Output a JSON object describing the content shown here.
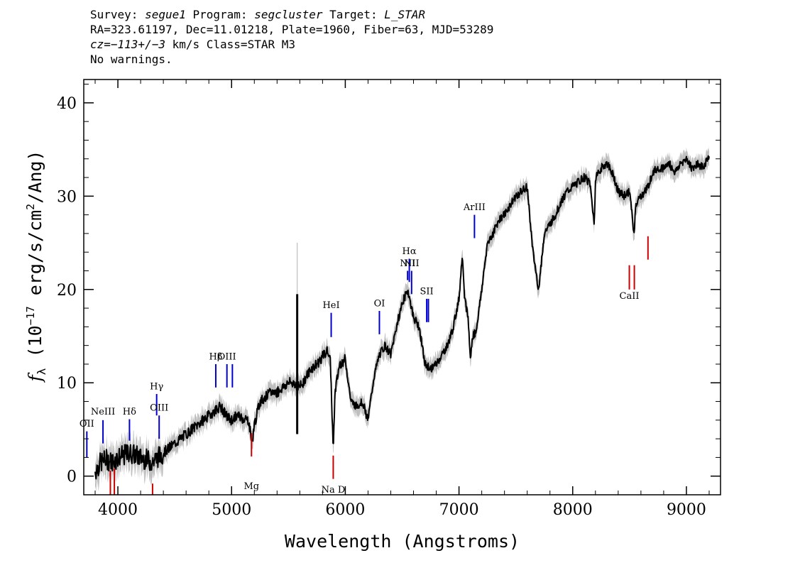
{
  "header": {
    "line1": {
      "survey_label": "Survey: ",
      "survey": "segue1",
      "program_label": " Program: ",
      "program": "segcluster",
      "target_label": " Target: ",
      "target": "L_STAR"
    },
    "line2": "RA=323.61197, Dec=11.01218, Plate=1960, Fiber=63, MJD=53289",
    "line3": {
      "cz": "cz=−113+/−3",
      "rest": " km/s Class=STAR M3"
    },
    "line4": "No warnings."
  },
  "chart_data": {
    "type": "line",
    "xlabel": "Wavelength (Angstroms)",
    "ylabel": "f_λ (10^-17 erg/s/cm^2/Ang)",
    "xlim": [
      3700,
      9300
    ],
    "ylim": [
      -2,
      42.5
    ],
    "xticks": [
      4000,
      5000,
      6000,
      7000,
      8000,
      9000
    ],
    "yticks": [
      0,
      10,
      20,
      30,
      40
    ],
    "grid": false,
    "series": [
      {
        "color_main": "#000000",
        "color_error": "#bfbfbf",
        "x": [
          3800,
          3850,
          3900,
          3950,
          4000,
          4050,
          4100,
          4150,
          4200,
          4250,
          4300,
          4350,
          4400,
          4450,
          4500,
          4550,
          4600,
          4650,
          4700,
          4750,
          4800,
          4850,
          4900,
          4950,
          5000,
          5050,
          5100,
          5150,
          5180,
          5200,
          5250,
          5300,
          5350,
          5400,
          5450,
          5500,
          5550,
          5600,
          5650,
          5700,
          5750,
          5800,
          5850,
          5870,
          5893,
          5910,
          5950,
          6000,
          6050,
          6100,
          6150,
          6200,
          6250,
          6300,
          6350,
          6400,
          6450,
          6500,
          6550,
          6565,
          6600,
          6650,
          6700,
          6750,
          6800,
          6850,
          6900,
          6950,
          7000,
          7030,
          7050,
          7080,
          7100,
          7120,
          7150,
          7200,
          7250,
          7300,
          7350,
          7400,
          7450,
          7500,
          7550,
          7600,
          7650,
          7700,
          7750,
          7800,
          7850,
          7900,
          7950,
          8000,
          8050,
          8100,
          8150,
          8190,
          8200,
          8250,
          8300,
          8350,
          8400,
          8450,
          8500,
          8542,
          8550,
          8600,
          8662,
          8700,
          8750,
          8800,
          8850,
          8900,
          8950,
          9000,
          9050,
          9100,
          9150,
          9200
        ],
        "y": [
          0.5,
          1.5,
          1.8,
          1.5,
          2.0,
          2.2,
          2.5,
          2.3,
          2.0,
          1.8,
          1.5,
          2.0,
          2.5,
          3.0,
          3.5,
          4.0,
          4.5,
          5.0,
          5.5,
          6.0,
          6.5,
          7.0,
          7.5,
          6.5,
          6.0,
          6.5,
          6.2,
          6.0,
          3.5,
          5.5,
          8.0,
          8.5,
          9.0,
          9.0,
          9.5,
          10.0,
          10.0,
          9.5,
          10.5,
          11.5,
          12.0,
          12.8,
          13.5,
          12.0,
          3.0,
          9.0,
          12.0,
          12.5,
          8.0,
          7.5,
          8.0,
          6.0,
          10.5,
          13.0,
          14.0,
          13.0,
          16.0,
          18.5,
          20.0,
          19.0,
          17.0,
          16.0,
          12.0,
          11.5,
          12.0,
          13.0,
          14.0,
          16.0,
          19.0,
          24.0,
          19.0,
          17.0,
          12.5,
          15.0,
          15.5,
          20.0,
          25.0,
          26.0,
          27.5,
          28.0,
          29.0,
          30.0,
          30.5,
          31.0,
          24.0,
          20.0,
          26.0,
          27.0,
          28.0,
          29.5,
          30.5,
          31.0,
          31.5,
          32.0,
          31.5,
          27.0,
          32.0,
          33.0,
          33.5,
          32.5,
          30.5,
          30.0,
          30.5,
          25.5,
          29.0,
          30.0,
          31.0,
          32.5,
          33.0,
          33.0,
          33.5,
          32.5,
          33.5,
          34.0,
          33.0,
          33.5,
          33.0,
          34.5
        ]
      }
    ],
    "spikes": [
      {
        "x": 5577,
        "ymin": 4.5,
        "ymax": 19.5,
        "err_ymin": 5.0,
        "err_ymax": 25.0
      }
    ],
    "emission_lines": [
      {
        "label": "OII",
        "x": 3727,
        "y1": 2.0,
        "y2": 4.8,
        "label_y": 5.3,
        "color": "#0000cc"
      },
      {
        "label": "NeIII",
        "x": 3869,
        "y1": 3.5,
        "y2": 6.0,
        "label_y": 6.6,
        "color": "#0000cc"
      },
      {
        "label": "Hδ",
        "x": 4102,
        "y1": 3.8,
        "y2": 6.1,
        "label_y": 6.6,
        "color": "#0000cc"
      },
      {
        "label": "Hγ",
        "x": 4341,
        "y1": 6.5,
        "y2": 8.8,
        "label_y": 9.3,
        "color": "#0000cc"
      },
      {
        "label": "OIII",
        "x": 4363,
        "y1": 4.0,
        "y2": 6.5,
        "label_y": 7.0,
        "color": "#0000cc"
      },
      {
        "label": "Hβ",
        "x": 4861,
        "y1": 9.5,
        "y2": 12.0,
        "label_y": 12.5,
        "color": "#0000cc"
      },
      {
        "label": "OIII",
        "x": 4959,
        "y1": 9.5,
        "y2": 12.0,
        "label_y": 12.5,
        "color": "#0000cc"
      },
      {
        "label": "",
        "x": 5007,
        "y1": 9.5,
        "y2": 12.0,
        "label_y": 12.5,
        "color": "#0000cc"
      },
      {
        "label": "HeI",
        "x": 5876,
        "y1": 14.9,
        "y2": 17.5,
        "label_y": 18.0,
        "color": "#0000cc"
      },
      {
        "label": "OI",
        "x": 6300,
        "y1": 15.2,
        "y2": 17.7,
        "label_y": 18.2,
        "color": "#0000cc"
      },
      {
        "label": "NII",
        "x": 6548,
        "y1": 21.0,
        "y2": 22.0,
        "label_y": 22.5,
        "color": "#0000cc"
      },
      {
        "label": "Hα",
        "x": 6563,
        "y1": 20.8,
        "y2": 23.3,
        "label_y": 23.8,
        "color": "#0000cc"
      },
      {
        "label": "NII",
        "x": 6583,
        "y1": 19.5,
        "y2": 22.0,
        "label_y": 22.5,
        "color": "#0000cc"
      },
      {
        "label": "SII",
        "x": 6716,
        "y1": 16.5,
        "y2": 19.0,
        "label_y": 19.5,
        "color": "#0000cc"
      },
      {
        "label": "",
        "x": 6731,
        "y1": 16.5,
        "y2": 19.0,
        "label_y": 19.5,
        "color": "#0000cc"
      },
      {
        "label": "ArIII",
        "x": 7136,
        "y1": 25.5,
        "y2": 28.0,
        "label_y": 28.5,
        "color": "#0000cc"
      }
    ],
    "absorption_lines": [
      {
        "label": "",
        "x": 3934,
        "y1": -2.0,
        "y2": 0.6,
        "label_y": -1.0,
        "color": "#cc0000"
      },
      {
        "label": "",
        "x": 3969,
        "y1": -2.0,
        "y2": 0.8,
        "label_y": -1.0,
        "color": "#cc0000"
      },
      {
        "label": "",
        "x": 4305,
        "y1": -2.0,
        "y2": -0.8,
        "label_y": -1.0,
        "color": "#cc0000"
      },
      {
        "label": "Mg",
        "x": 5175,
        "y1": 2.1,
        "y2": 4.6,
        "label_y": -1.4,
        "color": "#cc0000"
      },
      {
        "label": "Na D",
        "x": 5894,
        "y1": -0.3,
        "y2": 2.2,
        "label_y": -2.0,
        "color": "#cc0000"
      },
      {
        "label": "CaII",
        "x": 8498,
        "y1": 20.0,
        "y2": 22.6,
        "label_y": 19.0,
        "color": "#cc0000"
      },
      {
        "label": "",
        "x": 8542,
        "y1": 20.0,
        "y2": 22.6,
        "label_y": 19.0,
        "color": "#cc0000"
      },
      {
        "label": "",
        "x": 8662,
        "y1": 23.2,
        "y2": 25.7,
        "label_y": 19.0,
        "color": "#cc0000"
      }
    ]
  }
}
